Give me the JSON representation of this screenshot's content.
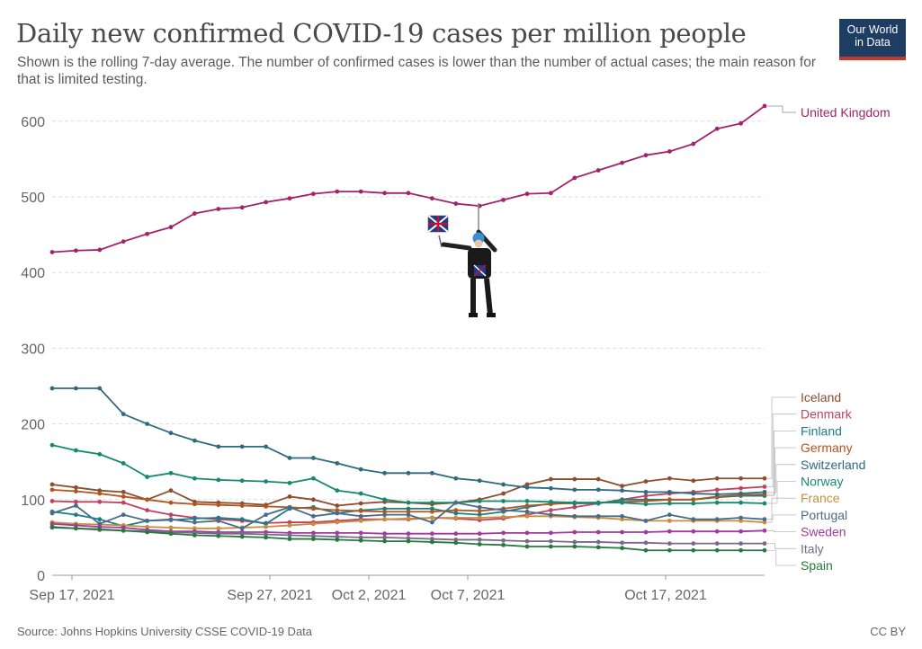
{
  "header": {
    "title": "Daily new confirmed COVID-19 cases per million people",
    "subtitle": "Shown is the rolling 7-day average. The number of confirmed cases is lower than the number of actual cases; the main reason for that is limited testing.",
    "logo_line1": "Our World",
    "logo_line2": "in Data"
  },
  "footer": {
    "source": "Source: Johns Hopkins University CSSE COVID-19 Data",
    "license": "CC BY"
  },
  "colors": {
    "background": "#ffffff",
    "grid": "#dddddd",
    "logo_bg": "#1d3d63",
    "logo_accent": "#c0392b"
  },
  "chart_data": {
    "type": "line",
    "title": "Daily new confirmed COVID-19 cases per million people",
    "ylim": [
      0,
      620
    ],
    "yticks": [
      0,
      100,
      200,
      300,
      400,
      500,
      600
    ],
    "xlim": [
      0,
      36
    ],
    "xticks": [
      {
        "x": 1,
        "label": "Sep 17, 2021"
      },
      {
        "x": 11,
        "label": "Sep 27, 2021"
      },
      {
        "x": 16,
        "label": "Oct 2, 2021"
      },
      {
        "x": 21,
        "label": "Oct 7, 2021"
      },
      {
        "x": 31,
        "label": "Oct 17, 2021"
      }
    ],
    "grid": true,
    "legend": "right-end labels",
    "series": [
      {
        "name": "United Kingdom",
        "color": "#a2226e",
        "values": [
          427,
          429,
          430,
          441,
          451,
          460,
          478,
          484,
          486,
          493,
          498,
          504,
          507,
          507,
          505,
          505,
          498,
          491,
          488,
          496,
          504,
          505,
          525,
          535,
          545,
          555,
          560,
          570,
          590,
          597,
          620
        ]
      },
      {
        "name": "Iceland",
        "color": "#8c4e2e",
        "values": [
          120,
          116,
          112,
          110,
          100,
          112,
          97,
          96,
          95,
          93,
          104,
          100,
          92,
          95,
          97,
          96,
          94,
          96,
          100,
          108,
          120,
          127,
          127,
          127,
          118,
          124,
          128,
          125,
          128,
          128,
          128
        ]
      },
      {
        "name": "Denmark",
        "color": "#c1425f",
        "values": [
          98,
          97,
          97,
          96,
          86,
          80,
          76,
          74,
          72,
          69,
          70,
          70,
          72,
          74,
          74,
          74,
          76,
          75,
          73,
          75,
          80,
          86,
          90,
          95,
          100,
          105,
          108,
          110,
          113,
          115,
          117
        ]
      },
      {
        "name": "Finland",
        "color": "#1b7d86",
        "values": [
          84,
          80,
          74,
          65,
          72,
          73,
          75,
          76,
          74,
          68,
          88,
          90,
          82,
          86,
          88,
          88,
          88,
          82,
          80,
          84,
          90,
          95,
          95,
          95,
          100,
          100,
          100,
          100,
          103,
          105,
          105
        ]
      },
      {
        "name": "Germany",
        "color": "#b0561e",
        "values": [
          113,
          111,
          108,
          104,
          100,
          96,
          94,
          93,
          92,
          91,
          90,
          88,
          86,
          85,
          84,
          84,
          84,
          86,
          85,
          88,
          92,
          94,
          96,
          96,
          97,
          98,
          100,
          100,
          104,
          106,
          107
        ]
      },
      {
        "name": "Switzerland",
        "color": "#2e6a80",
        "values": [
          247,
          247,
          247,
          213,
          200,
          188,
          178,
          170,
          170,
          170,
          155,
          155,
          148,
          140,
          135,
          135,
          135,
          128,
          125,
          120,
          116,
          115,
          113,
          113,
          112,
          110,
          110,
          108,
          107,
          108,
          110
        ]
      },
      {
        "name": "Norway",
        "color": "#158a6e",
        "values": [
          172,
          165,
          160,
          148,
          130,
          135,
          128,
          126,
          125,
          124,
          122,
          128,
          112,
          108,
          100,
          96,
          96,
          96,
          98,
          98,
          98,
          97,
          96,
          96,
          96,
          94,
          95,
          95,
          96,
          96,
          95
        ]
      },
      {
        "name": "France",
        "color": "#c78f3c",
        "values": [
          70,
          68,
          67,
          66,
          64,
          63,
          62,
          62,
          63,
          64,
          66,
          68,
          70,
          72,
          74,
          75,
          76,
          76,
          76,
          77,
          78,
          78,
          77,
          76,
          74,
          72,
          72,
          72,
          72,
          72,
          70
        ]
      },
      {
        "name": "Portugal",
        "color": "#4a6b8a",
        "values": [
          82,
          92,
          68,
          80,
          72,
          74,
          70,
          72,
          62,
          80,
          90,
          78,
          82,
          78,
          80,
          80,
          70,
          96,
          90,
          86,
          84,
          80,
          78,
          78,
          78,
          72,
          80,
          74,
          74,
          76,
          74
        ]
      },
      {
        "name": "Sweden",
        "color": "#a23a9c",
        "values": [
          68,
          66,
          64,
          63,
          60,
          58,
          58,
          57,
          57,
          57,
          56,
          56,
          56,
          56,
          55,
          55,
          55,
          55,
          55,
          56,
          56,
          56,
          57,
          57,
          57,
          57,
          58,
          58,
          58,
          58,
          59
        ]
      },
      {
        "name": "Italy",
        "color": "#7a6a8a",
        "values": [
          63,
          62,
          60,
          59,
          58,
          57,
          56,
          55,
          55,
          54,
          53,
          52,
          51,
          50,
          50,
          49,
          48,
          47,
          47,
          46,
          45,
          45,
          44,
          44,
          43,
          43,
          42,
          42,
          42,
          42,
          42
        ]
      },
      {
        "name": "Spain",
        "color": "#277a3d",
        "values": [
          64,
          62,
          61,
          59,
          57,
          55,
          53,
          52,
          51,
          50,
          48,
          48,
          47,
          46,
          45,
          45,
          44,
          43,
          41,
          40,
          38,
          38,
          38,
          37,
          36,
          33,
          33,
          33,
          33,
          33,
          33
        ]
      }
    ]
  }
}
